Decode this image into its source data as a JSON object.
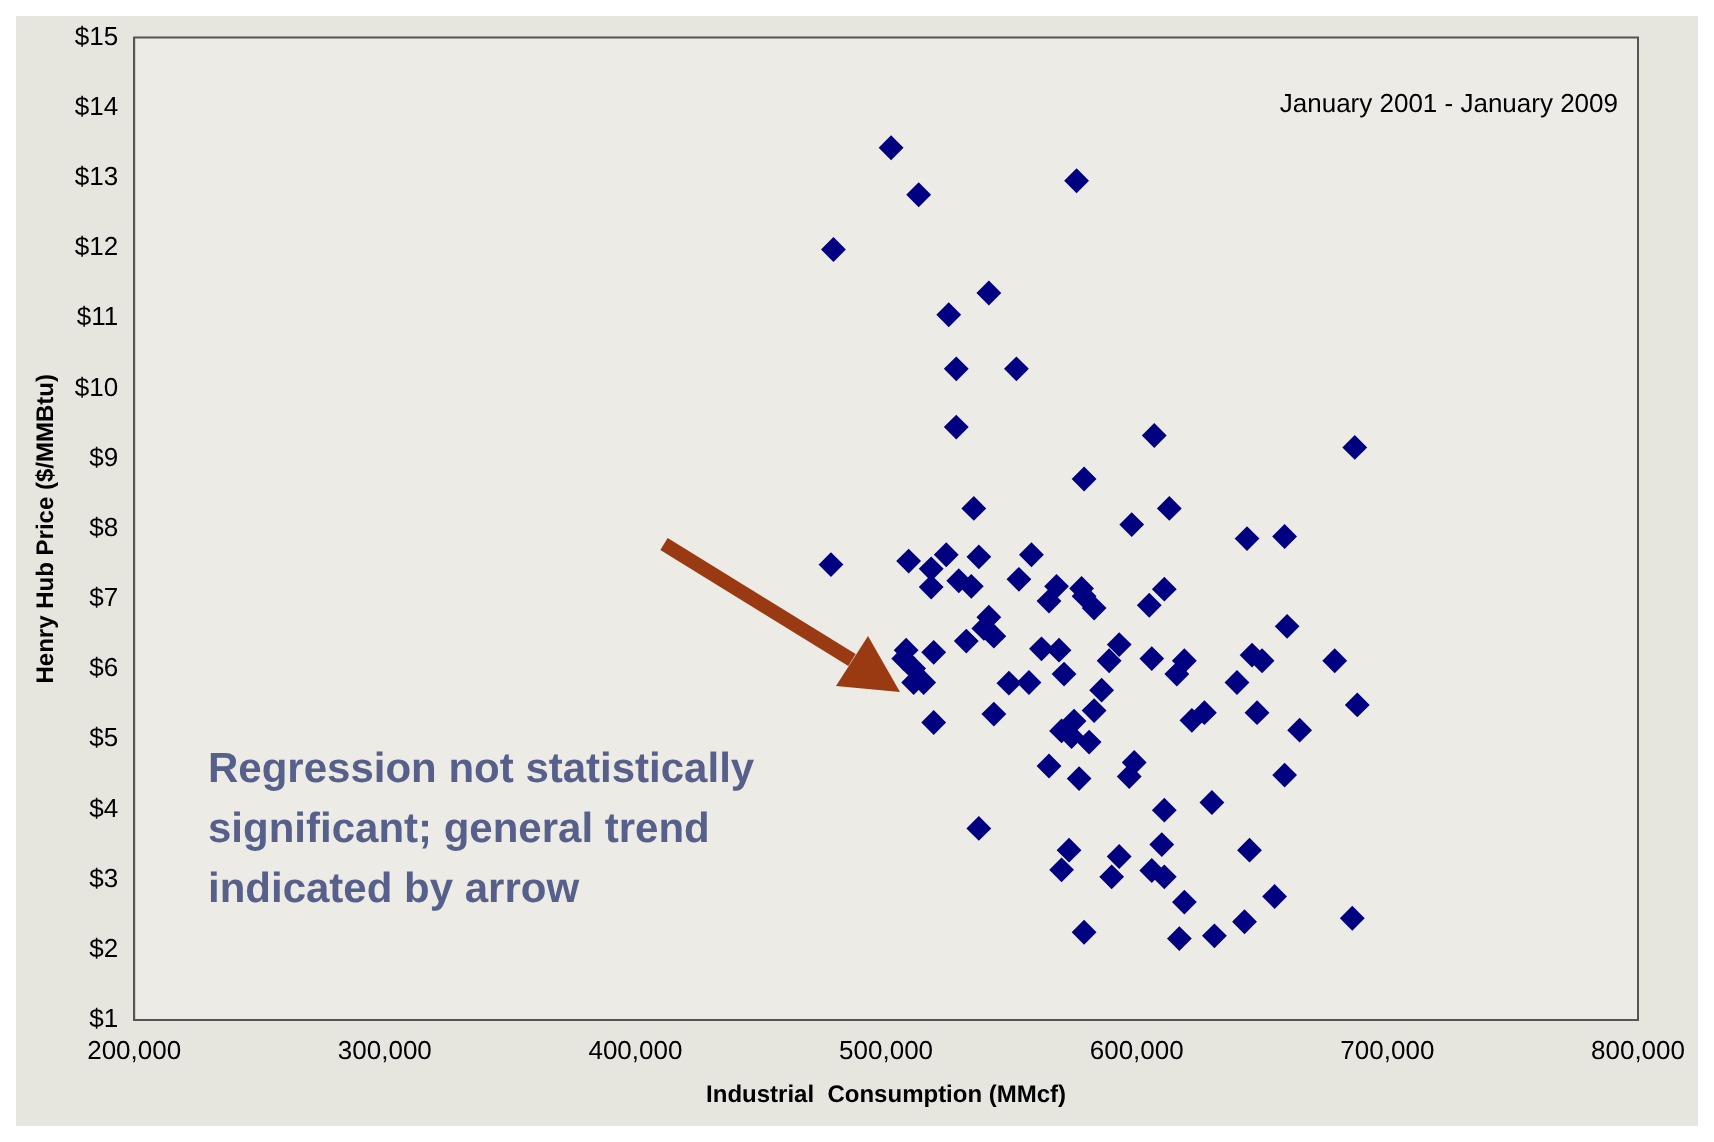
{
  "chart_data": {
    "type": "scatter",
    "xlabel": "Industrial  Consumption (MMcf)",
    "ylabel": "Henry Hub Price ($/MMBtu)",
    "annotations": [
      "January 2001 - January 2009",
      "Regression not statistically significant; general trend indicated by arrow"
    ],
    "marker": "diamond",
    "xlim": [
      200000,
      800000
    ],
    "xticks": [
      {
        "value": 200000,
        "label": "200,000"
      },
      {
        "value": 300000,
        "label": "300,000"
      },
      {
        "value": 400000,
        "label": "400,000"
      },
      {
        "value": 500000,
        "label": "500,000"
      },
      {
        "value": 600000,
        "label": "600,000"
      },
      {
        "value": 700000,
        "label": "700,000"
      },
      {
        "value": 800000,
        "label": "800,000"
      }
    ],
    "ylim": [
      1,
      15
    ],
    "yticks": [
      {
        "value": 1,
        "label": "$1"
      },
      {
        "value": 2,
        "label": "$2"
      },
      {
        "value": 3,
        "label": "$3"
      },
      {
        "value": 4,
        "label": "$4"
      },
      {
        "value": 5,
        "label": "$5"
      },
      {
        "value": 6,
        "label": "$6"
      },
      {
        "value": 7,
        "label": "$7"
      },
      {
        "value": 8,
        "label": "$8"
      },
      {
        "value": 9,
        "label": "$9"
      },
      {
        "value": 10,
        "label": "$10"
      },
      {
        "value": 11,
        "label": "$11"
      },
      {
        "value": 12,
        "label": "$12"
      },
      {
        "value": 13,
        "label": "$13"
      },
      {
        "value": 14,
        "label": "$14"
      },
      {
        "value": 15,
        "label": "$15"
      }
    ],
    "series": [
      {
        "color": "#000080",
        "x": [
          502000,
          576000,
          513000,
          479000,
          541000,
          525000,
          528000,
          552000,
          528000,
          607000,
          687000,
          579000,
          535000,
          613000,
          598000,
          644000,
          659000,
          478000,
          509000,
          524000,
          537000,
          558000,
          518000,
          518000,
          529000,
          534000,
          553000,
          568000,
          578000,
          565000,
          579000,
          583000,
          605000,
          611000,
          541000,
          539000,
          543000,
          532000,
          508000,
          507000,
          511000,
          519000,
          511000,
          515000,
          562000,
          569000,
          571000,
          549000,
          557000,
          519000,
          543000,
          593000,
          589000,
          606000,
          619000,
          616000,
          640000,
          646000,
          650000,
          660000,
          679000,
          688000,
          648000,
          665000,
          622000,
          627000,
          586000,
          583000,
          570000,
          575000,
          574000,
          581000,
          565000,
          577000,
          599000,
          597000,
          659000,
          611000,
          630000,
          537000,
          573000,
          570000,
          593000,
          590000,
          610000,
          606000,
          611000,
          645000,
          619000,
          655000,
          643000,
          686000,
          579000,
          617000,
          631000
        ],
        "values": [
          13.43,
          12.96,
          12.76,
          11.98,
          11.36,
          11.05,
          10.28,
          10.28,
          9.45,
          9.33,
          9.16,
          8.71,
          8.29,
          8.29,
          8.06,
          7.86,
          7.89,
          7.49,
          7.54,
          7.63,
          7.6,
          7.63,
          7.43,
          7.17,
          7.26,
          7.18,
          7.28,
          7.18,
          7.15,
          6.97,
          7.04,
          6.87,
          6.91,
          7.14,
          6.74,
          6.58,
          6.47,
          6.4,
          6.27,
          6.15,
          6.01,
          6.24,
          5.81,
          5.81,
          6.29,
          6.27,
          5.93,
          5.8,
          5.81,
          5.24,
          5.36,
          6.35,
          6.12,
          6.15,
          6.12,
          5.93,
          5.81,
          6.2,
          6.12,
          6.61,
          6.12,
          5.49,
          5.38,
          5.13,
          5.27,
          5.38,
          5.7,
          5.41,
          5.12,
          5.26,
          5.04,
          4.96,
          4.62,
          4.44,
          4.67,
          4.47,
          4.49,
          3.99,
          4.1,
          3.73,
          3.42,
          3.14,
          3.33,
          3.04,
          3.5,
          3.13,
          3.04,
          3.42,
          2.68,
          2.76,
          2.4,
          2.45,
          2.25,
          2.16,
          2.2
        ]
      }
    ]
  }
}
